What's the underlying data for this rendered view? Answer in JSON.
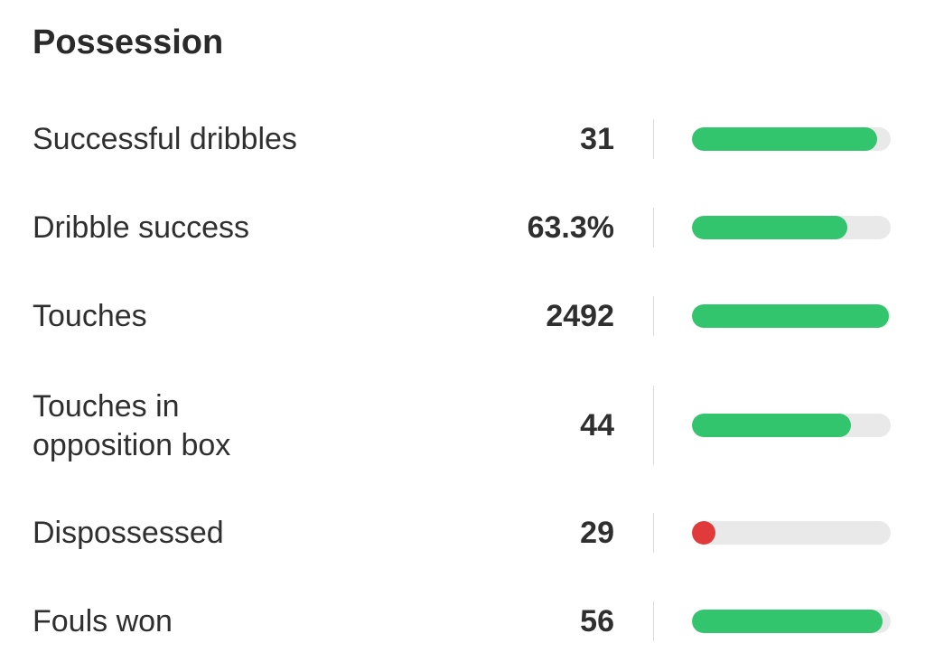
{
  "section": {
    "title": "Possession"
  },
  "colors": {
    "good": "#33c46e",
    "bad": "#e03a3a",
    "track": "#e9e9e9"
  },
  "stats": [
    {
      "label": "Successful dribbles",
      "value": "31",
      "bar_fraction": 0.93,
      "indicator": "bar"
    },
    {
      "label": "Dribble success",
      "value": "63.3%",
      "bar_fraction": 0.78,
      "indicator": "bar"
    },
    {
      "label": "Touches",
      "value": "2492",
      "bar_fraction": 0.99,
      "indicator": "bar"
    },
    {
      "label_lines": [
        "Touches in",
        "opposition box"
      ],
      "value": "44",
      "bar_fraction": 0.8,
      "indicator": "bar"
    },
    {
      "label": "Dispossessed",
      "value": "29",
      "bar_fraction": 0.06,
      "indicator": "dot"
    },
    {
      "label": "Fouls won",
      "value": "56",
      "bar_fraction": 0.96,
      "indicator": "bar"
    }
  ]
}
